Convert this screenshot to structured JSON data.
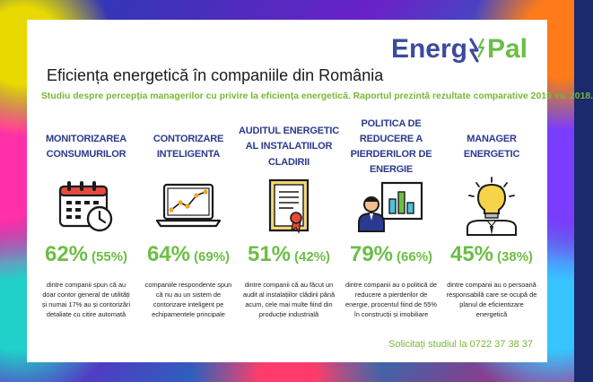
{
  "logo": {
    "left": "Energ",
    "right": "Pal"
  },
  "title": "Eficiența energetică în companiile din România",
  "subtitle": "Studiu despre percepția managerilor cu privire la eficiența energetică. Raportul prezintă rezultate comparative 2019 vs. 2018.",
  "columns": [
    {
      "heading": "MONITORIZAREA CONSUMURILOR",
      "icon": "calendar-clock-icon",
      "value": "62%",
      "previous": "(55%)",
      "description": "dintre companii spun că au doar contor general de utilități și numai 17% au și contorizări detaliate cu citire automată"
    },
    {
      "heading": "CONTORIZARE INTELIGENTA",
      "icon": "laptop-chart-icon",
      "value": "64%",
      "previous": "(69%)",
      "description": "companiile respondente spun că nu au un sistem de contorizare inteligent pe echipamentele principale"
    },
    {
      "heading": "AUDITUL ENERGETIC AL INSTALATIILOR CLADIRII",
      "icon": "certificate-icon",
      "value": "51%",
      "previous": "(42%)",
      "description": "dintre companii că au făcut un audit al instalațiilor clădirii până acum, cele mai multe fiind din producție industrială"
    },
    {
      "heading": "POLITICA DE REDUCERE A PIERDERILOR DE ENERGIE",
      "icon": "presenter-chart-icon",
      "value": "79%",
      "previous": "(66%)",
      "description": "dintre companii au o politică de reducere a pierderilor de energie, procentul fiind de 55% în construcții și imobiliare"
    },
    {
      "heading": "MANAGER ENERGETIC",
      "icon": "lightbulb-manager-icon",
      "value": "45%",
      "previous": "(38%)",
      "description": "dintre companii au o persoană responsabilă care se ocupă de planul de eficientizare energetică"
    }
  ],
  "footer": {
    "label": "Solicitați studiul la",
    "phone": "0722 37 38 37"
  },
  "colors": {
    "accent_green": "#6cbe45",
    "heading_blue": "#2b3a8f",
    "logo_blue": "#3c4a9e"
  }
}
